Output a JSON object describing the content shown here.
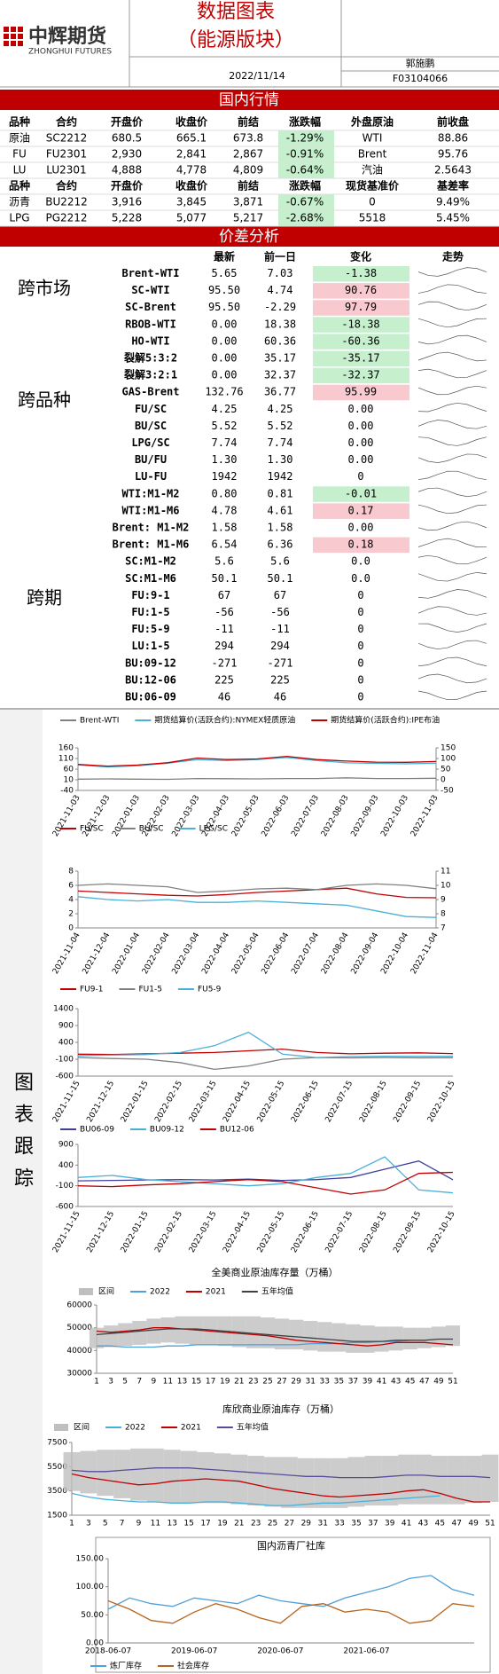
{
  "header": {
    "company": "中辉期货",
    "company_en": "ZHONGHUI FUTURES",
    "title": "数据图表",
    "subtitle": "（能源版块）",
    "date": "2022/11/14",
    "author": "郭施鹏",
    "license": "F03104066"
  },
  "domestic": {
    "title": "国内行情",
    "change_color": "#c6efce",
    "rows": [
      [
        "品种",
        "合约",
        "开盘价",
        "收盘价",
        "前结",
        "涨跌幅",
        "外盘原油",
        "前收盘"
      ],
      [
        "原油",
        "SC2212",
        "680.5",
        "665.1",
        "673.8",
        "-1.29%",
        "WTI",
        "88.86"
      ],
      [
        "FU",
        "FU2301",
        "2,930",
        "2,841",
        "2,867",
        "-0.91%",
        "Brent",
        "95.76"
      ],
      [
        "LU",
        "LU2301",
        "4,888",
        "4,778",
        "4,809",
        "-0.64%",
        "汽油",
        "2.5643"
      ],
      [
        "品种",
        "合约",
        "开盘价",
        "收盘价",
        "前结",
        "涨跌幅",
        "现货基准价",
        "基差率"
      ],
      [
        "沥青",
        "BU2212",
        "3,916",
        "3,845",
        "3,871",
        "-0.67%",
        "0",
        "9.49%"
      ],
      [
        "LPG",
        "PG2212",
        "5,228",
        "5,077",
        "5,217",
        "-2.68%",
        "5518",
        "5.45%"
      ]
    ]
  },
  "spread": {
    "title": "价差分析",
    "header": [
      "最新",
      "前一日",
      "变化",
      "走势"
    ],
    "groups": [
      "跨市场",
      "跨品种",
      "跨期"
    ],
    "rows": [
      {
        "name": "Brent-WTI",
        "latest": "5.65",
        "previous": "7.03",
        "change": "-1.38",
        "color": "#c6efce"
      },
      {
        "name": "SC-WTI",
        "latest": "95.50",
        "previous": "4.74",
        "change": "90.76",
        "color": "#f8c9cf"
      },
      {
        "name": "SC-Brent",
        "latest": "95.50",
        "previous": "-2.29",
        "change": "97.79",
        "color": "#f8c9cf"
      },
      {
        "name": "RBOB-WTI",
        "latest": "0.00",
        "previous": "18.38",
        "change": "-18.38",
        "color": "#c6efce"
      },
      {
        "name": "HO-WTI",
        "latest": "0.00",
        "previous": "60.36",
        "change": "-60.36",
        "color": "#c6efce"
      },
      {
        "name": "裂解5:3:2",
        "latest": "0.00",
        "previous": "35.17",
        "change": "-35.17",
        "color": "#c6efce"
      },
      {
        "name": "裂解3:2:1",
        "latest": "0.00",
        "previous": "32.37",
        "change": "-32.37",
        "color": "#c6efce"
      },
      {
        "name": "GAS-Brent",
        "latest": "132.76",
        "previous": "36.77",
        "change": "95.99",
        "color": "#f8c9cf"
      },
      {
        "name": "FU/SC",
        "latest": "4.25",
        "previous": "4.25",
        "change": "0.00"
      },
      {
        "name": "BU/SC",
        "latest": "5.52",
        "previous": "5.52",
        "change": "0.00"
      },
      {
        "name": "LPG/SC",
        "latest": "7.74",
        "previous": "7.74",
        "change": "0.00"
      },
      {
        "name": "BU/FU",
        "latest": "1.30",
        "previous": "1.30",
        "change": "0.00"
      },
      {
        "name": "LU-FU",
        "latest": "1942",
        "previous": "1942",
        "change": "0"
      },
      {
        "name": "WTI:M1-M2",
        "latest": "0.80",
        "previous": "0.81",
        "change": "-0.01",
        "color": "#c6efce"
      },
      {
        "name": "WTI:M1-M6",
        "latest": "4.78",
        "previous": "4.61",
        "change": "0.17",
        "color": "#f8c9cf"
      },
      {
        "name": "Brent: M1-M2",
        "latest": "1.58",
        "previous": "1.58",
        "change": "0.00"
      },
      {
        "name": "Brent: M1-M6",
        "latest": "6.54",
        "previous": "6.36",
        "change": "0.18",
        "color": "#f8c9cf"
      },
      {
        "name": "SC:M1-M2",
        "latest": "5.6",
        "previous": "5.6",
        "change": "0.0"
      },
      {
        "name": "SC:M1-M6",
        "latest": "50.1",
        "previous": "50.1",
        "change": "0.0"
      },
      {
        "name": "FU:9-1",
        "latest": "67",
        "previous": "67",
        "change": "0"
      },
      {
        "name": "FU:1-5",
        "latest": "-56",
        "previous": "-56",
        "change": "0"
      },
      {
        "name": "FU:5-9",
        "latest": "-11",
        "previous": "-11",
        "change": "0"
      },
      {
        "name": "LU:1-5",
        "latest": "294",
        "previous": "294",
        "change": "0"
      },
      {
        "name": "BU:09-12",
        "latest": "-271",
        "previous": "-271",
        "change": "0"
      },
      {
        "name": "BU:12-06",
        "latest": "225",
        "previous": "225",
        "change": "0"
      },
      {
        "name": "BU:06-09",
        "latest": "46",
        "previous": "46",
        "change": "0"
      }
    ]
  },
  "section_label": "图表跟踪",
  "charts": [
    {
      "type": "line",
      "categories": [
        "2021-11-03",
        "2021-12-03",
        "2022-01-03",
        "2022-02-03",
        "2022-03-03",
        "2022-04-03",
        "2022-05-03",
        "2022-06-03",
        "2022-07-03",
        "2022-08-03",
        "2022-09-03",
        "2022-10-03",
        "2022-11-03"
      ],
      "ylim": [
        -40,
        160
      ],
      "yticks": [
        -40,
        10,
        60,
        110,
        160
      ],
      "y2lim": [
        -50,
        150
      ],
      "y2ticks": [
        -50,
        0,
        50,
        100,
        150
      ],
      "series": [
        {
          "name": "Brent-WTI",
          "color": "#808080",
          "axis": "y2",
          "values": [
            3,
            4,
            3,
            2,
            6,
            5,
            4,
            6,
            6,
            9,
            6,
            6,
            7
          ]
        },
        {
          "name": "期货结算价(活跃合约):NYMEX轻质原油",
          "color": "#4ab0d8",
          "values": [
            80,
            70,
            76,
            88,
            105,
            100,
            105,
            115,
            100,
            90,
            87,
            85,
            88
          ]
        },
        {
          "name": "期货结算价(活跃合约):IPE布油",
          "color": "#c00000",
          "values": [
            82,
            74,
            79,
            90,
            112,
            105,
            108,
            120,
            105,
            98,
            93,
            92,
            96
          ]
        }
      ]
    },
    {
      "type": "line",
      "categories": [
        "2021-11-04",
        "2021-12-04",
        "2022-01-04",
        "2022-02-04",
        "2022-03-04",
        "2022-04-04",
        "2022-05-04",
        "2022-06-04",
        "2022-07-04",
        "2022-08-04",
        "2022-09-04",
        "2022-10-04",
        "2022-11-04"
      ],
      "ylim": [
        0,
        8
      ],
      "yticks": [
        0,
        2,
        4,
        6,
        8
      ],
      "y2lim": [
        7,
        11
      ],
      "y2ticks": [
        7,
        8,
        9,
        10,
        11
      ],
      "series": [
        {
          "name": "FU/SC",
          "color": "#c00000",
          "values": [
            5.2,
            5,
            4.8,
            4.6,
            4.5,
            4.7,
            5,
            5.2,
            5.4,
            5.6,
            4.8,
            4.3,
            4.25
          ]
        },
        {
          "name": "BU/SC",
          "color": "#808080",
          "values": [
            6,
            6.2,
            6,
            5.8,
            5,
            5.2,
            5.5,
            5.6,
            5.4,
            6,
            6.2,
            6,
            5.52
          ]
        },
        {
          "name": "LPG/SC",
          "color": "#4ab0d8",
          "axis": "y2",
          "values": [
            9.2,
            9,
            8.9,
            9,
            8.8,
            8.8,
            8.9,
            8.8,
            8.7,
            8.6,
            8.2,
            7.8,
            7.74
          ]
        }
      ]
    },
    {
      "type": "line",
      "categories": [
        "2021-11-15",
        "2021-12-15",
        "2022-01-15",
        "2022-02-15",
        "2022-03-15",
        "2022-04-15",
        "2022-05-15",
        "2022-06-15",
        "2022-07-15",
        "2022-08-15",
        "2022-09-15",
        "2022-10-15"
      ],
      "ylim": [
        -600,
        1400
      ],
      "yticks": [
        -600,
        -100,
        400,
        900,
        1400
      ],
      "series": [
        {
          "name": "FU9-1",
          "color": "#c00000",
          "values": [
            50,
            40,
            60,
            80,
            100,
            150,
            200,
            100,
            60,
            80,
            90,
            67
          ]
        },
        {
          "name": "FU1-5",
          "color": "#808080",
          "values": [
            -50,
            -80,
            -100,
            -200,
            -400,
            -300,
            -100,
            -50,
            -60,
            -50,
            -60,
            -56
          ]
        },
        {
          "name": "FU5-9",
          "color": "#4ab0d8",
          "values": [
            0,
            20,
            40,
            100,
            300,
            700,
            50,
            -50,
            -20,
            -10,
            -15,
            -11
          ]
        }
      ]
    },
    {
      "type": "line",
      "categories": [
        "2021-11-15",
        "2021-12-15",
        "2022-01-15",
        "2022-02-15",
        "2022-03-15",
        "2022-04-15",
        "2022-05-15",
        "2022-06-15",
        "2022-07-15",
        "2022-08-15",
        "2022-09-15",
        "2022-10-15"
      ],
      "ylim": [
        -600,
        900
      ],
      "yticks": [
        -600,
        -100,
        400,
        900
      ],
      "series": [
        {
          "name": "BU06-09",
          "color": "#3f3f9f",
          "values": [
            20,
            30,
            40,
            50,
            40,
            60,
            30,
            50,
            100,
            300,
            500,
            46
          ]
        },
        {
          "name": "BU09-12",
          "color": "#4ab0d8",
          "values": [
            100,
            150,
            50,
            0,
            -50,
            -100,
            -50,
            100,
            200,
            600,
            -200,
            -271
          ]
        },
        {
          "name": "BU12-06",
          "color": "#c00000",
          "values": [
            -100,
            -120,
            -80,
            -50,
            0,
            50,
            0,
            -150,
            -300,
            -200,
            200,
            225
          ]
        }
      ]
    },
    {
      "type": "line",
      "title": "全美商业原油库存量（万桶）",
      "categories": [
        1,
        3,
        5,
        7,
        9,
        11,
        13,
        15,
        17,
        19,
        21,
        23,
        25,
        27,
        29,
        31,
        33,
        35,
        37,
        39,
        41,
        43,
        45,
        47,
        49,
        51
      ],
      "ylim": [
        30000,
        60000
      ],
      "yticks": [
        30000,
        40000,
        50000,
        60000
      ],
      "series": [
        {
          "name": "区间",
          "color": "#bfbfbf",
          "low": [
            41000,
            41500,
            42000,
            42500,
            43000,
            43500,
            43000,
            42500,
            42500,
            42000,
            41500,
            41000,
            41000,
            40500,
            40500,
            40000,
            39500,
            39500,
            39000,
            39000,
            39500,
            40000,
            40500,
            41000,
            41500,
            42000
          ],
          "high": [
            50000,
            51000,
            52000,
            53000,
            54000,
            54500,
            55000,
            55000,
            55000,
            55000,
            55000,
            55000,
            54500,
            54000,
            53500,
            53000,
            52500,
            52000,
            51500,
            51000,
            50500,
            50500,
            50000,
            50000,
            50500,
            51000
          ]
        },
        {
          "name": "2022",
          "color": "#4f9fd8",
          "values": [
            42000,
            42000,
            41500,
            41500,
            41500,
            42000,
            42000,
            42500,
            42500,
            42500,
            42500,
            42500,
            42500,
            42500,
            42500,
            43000,
            43000,
            43000,
            43500,
            43500,
            44000,
            44000,
            44500,
            null,
            null,
            null
          ]
        },
        {
          "name": "2021",
          "color": "#c00000",
          "values": [
            48500,
            48000,
            48500,
            49000,
            50000,
            50000,
            49500,
            49000,
            48500,
            48000,
            47500,
            47000,
            46500,
            45500,
            44500,
            44000,
            43500,
            43000,
            42500,
            42000,
            42500,
            43500,
            43500,
            43500,
            43000,
            42500
          ]
        },
        {
          "name": "五年均值",
          "color": "#404040",
          "values": [
            47000,
            47500,
            48000,
            48500,
            49000,
            49500,
            49500,
            49500,
            49000,
            48500,
            48000,
            47500,
            47000,
            46500,
            46000,
            45500,
            45000,
            44500,
            44000,
            44000,
            44000,
            44500,
            44500,
            44500,
            45000,
            45000
          ]
        }
      ]
    },
    {
      "type": "line",
      "title": "库欣商业原油库存（万桶）",
      "categories": [
        1,
        3,
        5,
        7,
        9,
        11,
        13,
        15,
        17,
        19,
        21,
        23,
        25,
        27,
        29,
        31,
        33,
        35,
        37,
        39,
        41,
        43,
        45,
        47,
        49,
        51
      ],
      "ylim": [
        1500,
        7500
      ],
      "yticks": [
        1500,
        3500,
        5500,
        7500
      ],
      "series": [
        {
          "name": "区间",
          "color": "#bfbfbf",
          "low": [
            3500,
            3300,
            3100,
            2900,
            2700,
            2600,
            2500,
            2500,
            2500,
            2500,
            2400,
            2300,
            2200,
            2100,
            2100,
            2100,
            2100,
            2200,
            2300,
            2300,
            2400,
            2400,
            2400,
            2400,
            2500,
            2600
          ],
          "high": [
            6700,
            6800,
            6900,
            6900,
            7000,
            7000,
            6900,
            6800,
            6700,
            6600,
            6500,
            6400,
            6300,
            6300,
            6200,
            6200,
            6200,
            6300,
            6400,
            6400,
            6500,
            6500,
            6400,
            6400,
            6400,
            6500
          ]
        },
        {
          "name": "2022",
          "color": "#4ab0d8",
          "values": [
            3300,
            3000,
            2800,
            2700,
            2600,
            2600,
            2500,
            2500,
            2600,
            2600,
            2500,
            2400,
            2300,
            2300,
            2400,
            2500,
            2500,
            2600,
            2700,
            2800,
            2900,
            3000,
            3100,
            null,
            null,
            null
          ]
        },
        {
          "name": "2021",
          "color": "#c00000",
          "values": [
            4900,
            4600,
            4400,
            4200,
            4000,
            4100,
            4300,
            4400,
            4500,
            4400,
            4300,
            4000,
            3700,
            3500,
            3300,
            3100,
            3000,
            3100,
            3200,
            3300,
            3500,
            3600,
            3300,
            2900,
            2600,
            2600
          ]
        },
        {
          "name": "五年均值",
          "color": "#5b4a9b",
          "values": [
            5200,
            5100,
            5100,
            5200,
            5300,
            5400,
            5400,
            5400,
            5300,
            5200,
            5100,
            5000,
            4900,
            4800,
            4700,
            4700,
            4600,
            4600,
            4600,
            4700,
            4800,
            4800,
            4700,
            4700,
            4700,
            4600
          ]
        }
      ]
    },
    {
      "type": "line",
      "title": "国内沥青厂社库",
      "categories": [
        "2018-06-07",
        null,
        null,
        null,
        "2019-06-07",
        null,
        null,
        null,
        "2020-06-07",
        null,
        null,
        null,
        "2021-06-07",
        null,
        null,
        null,
        null,
        null
      ],
      "ylim": [
        0,
        150
      ],
      "yticks": [
        {
          "value": 0,
          "label": "0.00"
        },
        {
          "value": 50,
          "label": "50.00"
        },
        {
          "value": 100,
          "label": "100.00"
        },
        {
          "value": 150,
          "label": "150.00"
        }
      ],
      "series": [
        {
          "name": "炼厂库存",
          "color": "#4f9fd8",
          "values": [
            60,
            80,
            70,
            65,
            80,
            75,
            70,
            85,
            75,
            70,
            65,
            80,
            90,
            100,
            115,
            120,
            95,
            85
          ]
        },
        {
          "name": "社会库存",
          "color": "#b5651d",
          "values": [
            75,
            60,
            40,
            35,
            55,
            70,
            60,
            45,
            35,
            65,
            70,
            55,
            60,
            55,
            35,
            40,
            70,
            65
          ]
        }
      ]
    }
  ]
}
